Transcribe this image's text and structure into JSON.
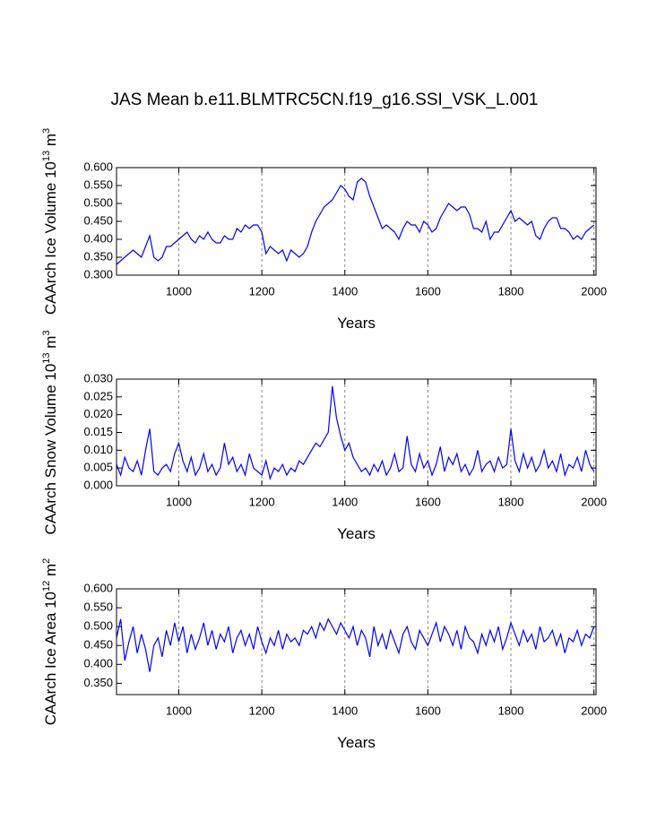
{
  "chart_data": [
    {
      "type": "line",
      "title": "JAS Mean b.e11.BLMTRC5CN.f19_g16.SSI_VSK_L.001",
      "y_label": {
        "text": "CAArch Ice Volume 10",
        "exp": "13",
        "unit": " m",
        "unit_exp": "3"
      },
      "x_label": "Years",
      "xlim": [
        850,
        2005
      ],
      "xticks": [
        1000,
        1200,
        1400,
        1600,
        1800,
        2000
      ],
      "grid": true,
      "ylim": [
        0.3,
        0.6
      ],
      "yticks": [
        {
          "value": 0.3,
          "label": "0.300"
        },
        {
          "value": 0.35,
          "label": "0.350"
        },
        {
          "value": 0.4,
          "label": "0.400"
        },
        {
          "value": 0.45,
          "label": "0.450"
        },
        {
          "value": 0.5,
          "label": "0.500"
        },
        {
          "value": 0.55,
          "label": "0.550"
        },
        {
          "value": 0.6,
          "label": "0.600"
        }
      ],
      "x": [
        850,
        860,
        870,
        880,
        890,
        900,
        910,
        920,
        930,
        940,
        950,
        960,
        970,
        980,
        990,
        1000,
        1010,
        1020,
        1030,
        1040,
        1050,
        1060,
        1070,
        1080,
        1090,
        1100,
        1110,
        1120,
        1130,
        1140,
        1150,
        1160,
        1170,
        1180,
        1190,
        1200,
        1210,
        1220,
        1230,
        1240,
        1250,
        1260,
        1270,
        1280,
        1290,
        1300,
        1310,
        1320,
        1330,
        1340,
        1350,
        1360,
        1370,
        1380,
        1390,
        1400,
        1410,
        1420,
        1430,
        1440,
        1450,
        1460,
        1470,
        1480,
        1490,
        1500,
        1510,
        1520,
        1530,
        1540,
        1550,
        1560,
        1570,
        1580,
        1590,
        1600,
        1610,
        1620,
        1630,
        1640,
        1650,
        1660,
        1670,
        1680,
        1690,
        1700,
        1710,
        1720,
        1730,
        1740,
        1750,
        1760,
        1770,
        1780,
        1790,
        1800,
        1810,
        1820,
        1830,
        1840,
        1850,
        1860,
        1870,
        1880,
        1890,
        1900,
        1910,
        1920,
        1930,
        1940,
        1950,
        1960,
        1970,
        1980,
        1990,
        2000
      ],
      "series": [
        {
          "color": "#0000ff",
          "values": [
            0.33,
            0.34,
            0.35,
            0.36,
            0.37,
            0.36,
            0.35,
            0.38,
            0.41,
            0.35,
            0.34,
            0.35,
            0.38,
            0.38,
            0.39,
            0.4,
            0.41,
            0.42,
            0.4,
            0.39,
            0.41,
            0.4,
            0.42,
            0.4,
            0.39,
            0.39,
            0.41,
            0.4,
            0.4,
            0.43,
            0.42,
            0.44,
            0.43,
            0.44,
            0.44,
            0.42,
            0.36,
            0.38,
            0.37,
            0.36,
            0.37,
            0.34,
            0.37,
            0.36,
            0.35,
            0.36,
            0.38,
            0.42,
            0.45,
            0.47,
            0.49,
            0.5,
            0.51,
            0.53,
            0.55,
            0.54,
            0.52,
            0.51,
            0.56,
            0.57,
            0.56,
            0.52,
            0.49,
            0.46,
            0.43,
            0.44,
            0.43,
            0.42,
            0.4,
            0.43,
            0.45,
            0.44,
            0.44,
            0.42,
            0.45,
            0.44,
            0.42,
            0.43,
            0.46,
            0.48,
            0.5,
            0.49,
            0.48,
            0.49,
            0.49,
            0.47,
            0.43,
            0.43,
            0.42,
            0.45,
            0.4,
            0.42,
            0.42,
            0.44,
            0.46,
            0.48,
            0.45,
            0.46,
            0.45,
            0.44,
            0.45,
            0.41,
            0.4,
            0.43,
            0.45,
            0.46,
            0.46,
            0.43,
            0.43,
            0.42,
            0.4,
            0.41,
            0.4,
            0.42,
            0.43,
            0.44
          ]
        }
      ]
    },
    {
      "type": "line",
      "y_label": {
        "text": "CAArch Snow Volume 10",
        "exp": "13",
        "unit": " m",
        "unit_exp": "3"
      },
      "x_label": "Years",
      "xlim": [
        850,
        2005
      ],
      "xticks": [
        1000,
        1200,
        1400,
        1600,
        1800,
        2000
      ],
      "grid": true,
      "ylim": [
        0,
        0.03
      ],
      "yticks": [
        {
          "value": 0,
          "label": "0.000"
        },
        {
          "value": 0.005,
          "label": "0.005"
        },
        {
          "value": 0.01,
          "label": "0.010"
        },
        {
          "value": 0.015,
          "label": "0.015"
        },
        {
          "value": 0.02,
          "label": "0.020"
        },
        {
          "value": 0.025,
          "label": "0.025"
        },
        {
          "value": 0.03,
          "label": "0.030"
        }
      ],
      "x": [
        850,
        860,
        870,
        880,
        890,
        900,
        910,
        920,
        930,
        940,
        950,
        960,
        970,
        980,
        990,
        1000,
        1010,
        1020,
        1030,
        1040,
        1050,
        1060,
        1070,
        1080,
        1090,
        1100,
        1110,
        1120,
        1130,
        1140,
        1150,
        1160,
        1170,
        1180,
        1190,
        1200,
        1210,
        1220,
        1230,
        1240,
        1250,
        1260,
        1270,
        1280,
        1290,
        1300,
        1310,
        1320,
        1330,
        1340,
        1350,
        1360,
        1370,
        1380,
        1390,
        1400,
        1410,
        1420,
        1430,
        1440,
        1450,
        1460,
        1470,
        1480,
        1490,
        1500,
        1510,
        1520,
        1530,
        1540,
        1550,
        1560,
        1570,
        1580,
        1590,
        1600,
        1610,
        1620,
        1630,
        1640,
        1650,
        1660,
        1670,
        1680,
        1690,
        1700,
        1710,
        1720,
        1730,
        1740,
        1750,
        1760,
        1770,
        1780,
        1790,
        1800,
        1810,
        1820,
        1830,
        1840,
        1850,
        1860,
        1870,
        1880,
        1890,
        1900,
        1910,
        1920,
        1930,
        1940,
        1950,
        1960,
        1970,
        1980,
        1990,
        2000
      ],
      "series": [
        {
          "color": "#0000ff",
          "values": [
            0.006,
            0.003,
            0.008,
            0.005,
            0.004,
            0.007,
            0.003,
            0.01,
            0.016,
            0.004,
            0.003,
            0.005,
            0.006,
            0.004,
            0.009,
            0.012,
            0.007,
            0.004,
            0.008,
            0.003,
            0.005,
            0.009,
            0.004,
            0.006,
            0.003,
            0.005,
            0.012,
            0.006,
            0.008,
            0.004,
            0.006,
            0.003,
            0.009,
            0.005,
            0.004,
            0.003,
            0.007,
            0.002,
            0.005,
            0.004,
            0.006,
            0.003,
            0.005,
            0.004,
            0.007,
            0.006,
            0.008,
            0.01,
            0.012,
            0.011,
            0.013,
            0.015,
            0.028,
            0.019,
            0.014,
            0.01,
            0.012,
            0.008,
            0.006,
            0.004,
            0.005,
            0.003,
            0.006,
            0.004,
            0.007,
            0.003,
            0.005,
            0.009,
            0.004,
            0.005,
            0.014,
            0.006,
            0.004,
            0.009,
            0.005,
            0.007,
            0.003,
            0.006,
            0.011,
            0.004,
            0.008,
            0.006,
            0.009,
            0.004,
            0.006,
            0.003,
            0.005,
            0.01,
            0.004,
            0.006,
            0.007,
            0.004,
            0.008,
            0.005,
            0.006,
            0.016,
            0.007,
            0.004,
            0.009,
            0.005,
            0.008,
            0.004,
            0.006,
            0.01,
            0.005,
            0.007,
            0.004,
            0.009,
            0.003,
            0.006,
            0.005,
            0.008,
            0.004,
            0.01,
            0.006,
            0.004
          ]
        }
      ]
    },
    {
      "type": "line",
      "y_label": {
        "text": "CAArch Ice Area 10",
        "exp": "12",
        "unit": " m",
        "unit_exp": "2"
      },
      "x_label": "Years",
      "xlim": [
        850,
        2005
      ],
      "xticks": [
        1000,
        1200,
        1400,
        1600,
        1800,
        2000
      ],
      "grid": true,
      "ylim": [
        0.32,
        0.6
      ],
      "yticks": [
        {
          "value": 0.35,
          "label": "0.350"
        },
        {
          "value": 0.4,
          "label": "0.400"
        },
        {
          "value": 0.45,
          "label": "0.450"
        },
        {
          "value": 0.5,
          "label": "0.500"
        },
        {
          "value": 0.55,
          "label": "0.550"
        },
        {
          "value": 0.6,
          "label": "0.600"
        }
      ],
      "x": [
        850,
        860,
        870,
        880,
        890,
        900,
        910,
        920,
        930,
        940,
        950,
        960,
        970,
        980,
        990,
        1000,
        1010,
        1020,
        1030,
        1040,
        1050,
        1060,
        1070,
        1080,
        1090,
        1100,
        1110,
        1120,
        1130,
        1140,
        1150,
        1160,
        1170,
        1180,
        1190,
        1200,
        1210,
        1220,
        1230,
        1240,
        1250,
        1260,
        1270,
        1280,
        1290,
        1300,
        1310,
        1320,
        1330,
        1340,
        1350,
        1360,
        1370,
        1380,
        1390,
        1400,
        1410,
        1420,
        1430,
        1440,
        1450,
        1460,
        1470,
        1480,
        1490,
        1500,
        1510,
        1520,
        1530,
        1540,
        1550,
        1560,
        1570,
        1580,
        1590,
        1600,
        1610,
        1620,
        1630,
        1640,
        1650,
        1660,
        1670,
        1680,
        1690,
        1700,
        1710,
        1720,
        1730,
        1740,
        1750,
        1760,
        1770,
        1780,
        1790,
        1800,
        1810,
        1820,
        1830,
        1840,
        1850,
        1860,
        1870,
        1880,
        1890,
        1900,
        1910,
        1920,
        1930,
        1940,
        1950,
        1960,
        1970,
        1980,
        1990,
        2000
      ],
      "series": [
        {
          "color": "#0000ff",
          "values": [
            0.47,
            0.52,
            0.41,
            0.46,
            0.5,
            0.43,
            0.48,
            0.44,
            0.38,
            0.45,
            0.47,
            0.42,
            0.49,
            0.45,
            0.51,
            0.46,
            0.5,
            0.43,
            0.48,
            0.44,
            0.47,
            0.51,
            0.45,
            0.49,
            0.44,
            0.48,
            0.46,
            0.5,
            0.43,
            0.47,
            0.49,
            0.45,
            0.48,
            0.44,
            0.5,
            0.46,
            0.43,
            0.47,
            0.45,
            0.49,
            0.44,
            0.48,
            0.46,
            0.47,
            0.45,
            0.49,
            0.48,
            0.5,
            0.47,
            0.51,
            0.49,
            0.52,
            0.5,
            0.48,
            0.51,
            0.49,
            0.47,
            0.5,
            0.45,
            0.49,
            0.47,
            0.42,
            0.5,
            0.45,
            0.48,
            0.44,
            0.49,
            0.46,
            0.43,
            0.48,
            0.5,
            0.46,
            0.44,
            0.49,
            0.47,
            0.45,
            0.48,
            0.51,
            0.46,
            0.5,
            0.48,
            0.45,
            0.49,
            0.44,
            0.5,
            0.47,
            0.46,
            0.43,
            0.48,
            0.45,
            0.49,
            0.46,
            0.5,
            0.44,
            0.47,
            0.51,
            0.48,
            0.45,
            0.49,
            0.46,
            0.48,
            0.44,
            0.5,
            0.46,
            0.47,
            0.49,
            0.45,
            0.48,
            0.43,
            0.47,
            0.46,
            0.49,
            0.45,
            0.48,
            0.47,
            0.5
          ]
        }
      ]
    }
  ]
}
